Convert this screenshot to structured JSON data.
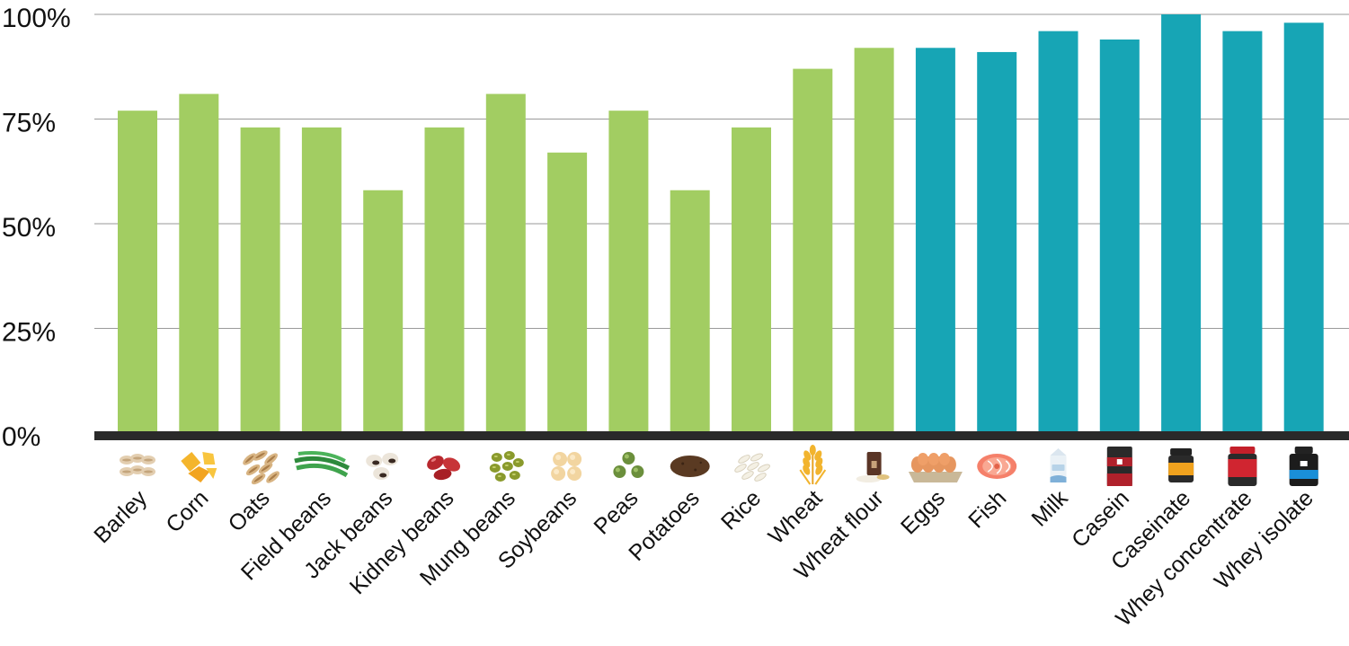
{
  "chart_data": {
    "type": "bar",
    "title": "",
    "xlabel": "",
    "ylabel": "",
    "ylim": [
      0,
      100
    ],
    "yticks": [
      0,
      25,
      50,
      75,
      100
    ],
    "ytick_labels": [
      "0%",
      "25%",
      "50%",
      "75%",
      "100%"
    ],
    "grid": true,
    "categories": [
      "Barley",
      "Corn",
      "Oats",
      "Field beans",
      "Jack beans",
      "Kidney beans",
      "Mung beans",
      "Soybeans",
      "Peas",
      "Potatoes",
      "Rice",
      "Wheat",
      "Wheat flour",
      "Eggs",
      "Fish",
      "Milk",
      "Casein",
      "Caseinate",
      "Whey concentrate",
      "Whey isolate"
    ],
    "values": [
      77,
      81,
      73,
      73,
      58,
      73,
      81,
      67,
      77,
      58,
      73,
      87,
      92,
      92,
      91,
      96,
      94,
      100,
      96,
      98
    ],
    "groups": [
      "plant",
      "plant",
      "plant",
      "plant",
      "plant",
      "plant",
      "plant",
      "plant",
      "plant",
      "plant",
      "plant",
      "plant",
      "plant",
      "animal",
      "animal",
      "animal",
      "animal",
      "animal",
      "animal",
      "animal"
    ],
    "group_colors": {
      "plant": "#a2cd62",
      "animal": "#17a5b5"
    },
    "icons": [
      "barley-icon",
      "corn-icon",
      "oats-icon",
      "field-beans-icon",
      "jack-beans-icon",
      "kidney-beans-icon",
      "mung-beans-icon",
      "soybeans-icon",
      "peas-icon",
      "potatoes-icon",
      "rice-icon",
      "wheat-icon",
      "wheat-flour-icon",
      "eggs-icon",
      "fish-icon",
      "milk-icon",
      "casein-icon",
      "caseinate-icon",
      "whey-concentrate-icon",
      "whey-isolate-icon"
    ]
  }
}
